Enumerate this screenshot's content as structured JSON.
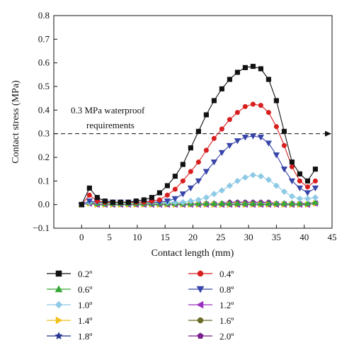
{
  "chart_data": {
    "type": "line",
    "xlabel": "Contact length (mm)",
    "ylabel": "Contact stress (MPa)",
    "xlim": [
      -5,
      45
    ],
    "ylim": [
      -0.1,
      0.8
    ],
    "xticks": [
      0,
      5,
      10,
      15,
      20,
      25,
      30,
      35,
      40,
      45
    ],
    "yticks": [
      -0.1,
      0.0,
      0.1,
      0.2,
      0.3,
      0.4,
      0.5,
      0.6,
      0.7,
      0.8
    ],
    "xtick_labels": [
      "0",
      "5",
      "10",
      "15",
      "20",
      "25",
      "30",
      "35",
      "40",
      "45"
    ],
    "ytick_labels": [
      "−0.1",
      "0.0",
      "0.1",
      "0.2",
      "0.3",
      "0.4",
      "0.5",
      "0.6",
      "0.7",
      "0.8"
    ],
    "grid": false,
    "legend_position": "below",
    "reference_line": {
      "y": 0.3,
      "label_line1": "0.3 MPa waterproof",
      "label_line2": "requirements"
    },
    "x": [
      0,
      1.4,
      2.8,
      4.2,
      5.6,
      7,
      8.4,
      9.8,
      11.2,
      12.6,
      14,
      15.4,
      16.8,
      18.2,
      19.6,
      21,
      22.4,
      23.8,
      25.2,
      26.6,
      28,
      29.4,
      30.8,
      32.2,
      33.6,
      35,
      36.4,
      37.8,
      39.2,
      40.6,
      42
    ],
    "series": [
      {
        "name": "0.2º",
        "color": "#111111",
        "marker": "square",
        "values": [
          0.0,
          0.07,
          0.03,
          0.015,
          0.01,
          0.01,
          0.01,
          0.015,
          0.02,
          0.03,
          0.05,
          0.08,
          0.12,
          0.17,
          0.24,
          0.31,
          0.38,
          0.44,
          0.49,
          0.53,
          0.56,
          0.58,
          0.585,
          0.575,
          0.53,
          0.44,
          0.31,
          0.18,
          0.13,
          0.1,
          0.15
        ]
      },
      {
        "name": "0.4º",
        "color": "#d81e1e",
        "marker": "circle",
        "values": [
          0.0,
          0.04,
          0.015,
          0.01,
          0.01,
          0.01,
          0.01,
          0.01,
          0.01,
          0.015,
          0.02,
          0.04,
          0.065,
          0.1,
          0.14,
          0.18,
          0.23,
          0.28,
          0.32,
          0.36,
          0.39,
          0.415,
          0.425,
          0.42,
          0.39,
          0.33,
          0.25,
          0.16,
          0.1,
          0.075,
          0.1
        ]
      },
      {
        "name": "0.6º",
        "color": "#36a836",
        "marker": "triangle-up",
        "values": [
          0.0,
          0.01,
          0.005,
          0.005,
          0.005,
          0.005,
          0.005,
          0.005,
          0.005,
          0.005,
          0.005,
          0.005,
          0.005,
          0.005,
          0.005,
          0.005,
          0.005,
          0.005,
          0.005,
          0.005,
          0.005,
          0.005,
          0.005,
          0.005,
          0.005,
          0.005,
          0.005,
          0.005,
          0.005,
          0.005,
          0.01
        ]
      },
      {
        "name": "0.8º",
        "color": "#3645a8",
        "marker": "triangle-down",
        "values": [
          0.0,
          0.015,
          0.01,
          0.01,
          0.01,
          0.01,
          0.01,
          0.01,
          0.01,
          0.01,
          0.01,
          0.015,
          0.025,
          0.045,
          0.07,
          0.1,
          0.14,
          0.18,
          0.22,
          0.25,
          0.27,
          0.285,
          0.29,
          0.285,
          0.26,
          0.21,
          0.15,
          0.1,
          0.07,
          0.05,
          0.07
        ]
      },
      {
        "name": "1.0º",
        "color": "#8ecae6",
        "marker": "diamond",
        "values": [
          0.0,
          0.01,
          0.01,
          0.01,
          0.01,
          0.01,
          0.01,
          0.01,
          0.01,
          0.01,
          0.01,
          0.01,
          0.01,
          0.01,
          0.015,
          0.02,
          0.03,
          0.045,
          0.06,
          0.08,
          0.1,
          0.115,
          0.125,
          0.12,
          0.105,
          0.08,
          0.055,
          0.035,
          0.025,
          0.025,
          0.03
        ]
      },
      {
        "name": "1.2º",
        "color": "#9b30c0",
        "marker": "triangle-left",
        "values": [
          0.0,
          0.005,
          0.0,
          0.0,
          0.0,
          0.0,
          0.0,
          0.0,
          0.0,
          0.0,
          0.0,
          0.0,
          0.0,
          0.0,
          0.0,
          0.0,
          0.0,
          0.0,
          0.0,
          0.0,
          0.0,
          0.0,
          0.0,
          0.0,
          0.0,
          0.0,
          0.0,
          0.0,
          0.0,
          0.0,
          0.005
        ]
      },
      {
        "name": "1.4º",
        "color": "#f2c21b",
        "marker": "triangle-right",
        "values": [
          0.0,
          0.005,
          0.0,
          0.0,
          0.0,
          0.0,
          0.0,
          0.0,
          0.0,
          0.0,
          0.0,
          0.0,
          0.0,
          0.0,
          0.0,
          0.0,
          0.0,
          0.0,
          0.0,
          0.0,
          0.0,
          0.0,
          0.0,
          0.0,
          0.0,
          0.0,
          0.0,
          0.0,
          0.0,
          0.0,
          0.005
        ]
      },
      {
        "name": "1.6º",
        "color": "#6b6b2a",
        "marker": "circle",
        "values": [
          0.0,
          0.005,
          0.0,
          0.0,
          0.0,
          0.0,
          0.0,
          0.0,
          0.0,
          0.0,
          0.0,
          0.0,
          0.0,
          0.0,
          0.0,
          0.0,
          0.0,
          0.0,
          0.0,
          0.0,
          0.0,
          0.0,
          0.0,
          0.0,
          0.0,
          0.0,
          0.0,
          0.0,
          0.0,
          0.0,
          0.005
        ]
      },
      {
        "name": "1.8º",
        "color": "#25358f",
        "marker": "star",
        "values": [
          0.0,
          0.005,
          0.0,
          0.0,
          0.0,
          0.0,
          0.0,
          0.0,
          0.0,
          0.0,
          0.0,
          0.0,
          0.0,
          0.0,
          0.0,
          0.0,
          0.0,
          0.0,
          0.0,
          0.0,
          0.0,
          0.0,
          0.0,
          0.0,
          0.0,
          0.0,
          0.0,
          0.0,
          0.0,
          0.0,
          0.005
        ]
      },
      {
        "name": "2.0º",
        "color": "#7a1f8c",
        "marker": "pentagon",
        "values": [
          0.0,
          0.005,
          0.005,
          0.005,
          0.005,
          0.005,
          0.005,
          0.005,
          0.005,
          0.005,
          0.005,
          0.005,
          0.005,
          0.005,
          0.005,
          0.005,
          0.005,
          0.005,
          0.005,
          0.01,
          0.01,
          0.01,
          0.01,
          0.01,
          0.01,
          0.005,
          0.005,
          0.005,
          0.005,
          0.0,
          0.005
        ]
      }
    ]
  }
}
